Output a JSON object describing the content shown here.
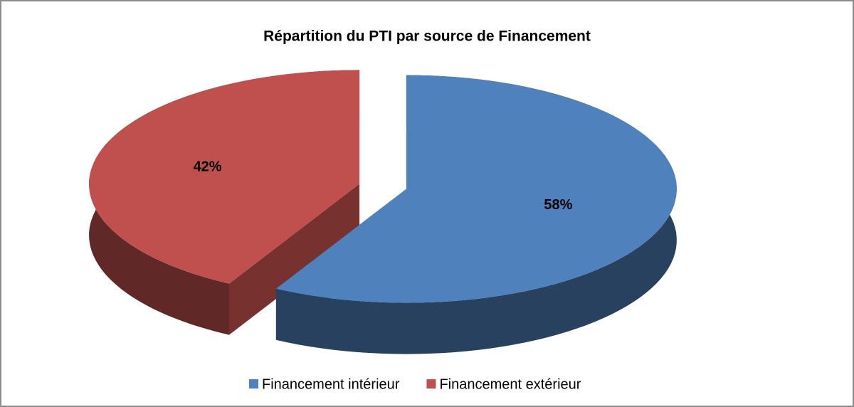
{
  "chart_data": {
    "type": "pie",
    "title": "Répartition du PTI par source de Financement",
    "categories": [
      "Financement intérieur",
      "Financement extérieur"
    ],
    "values": [
      58,
      42
    ],
    "value_labels": [
      "58%",
      "42%"
    ],
    "colors": [
      "#4f81bd",
      "#c0504d"
    ],
    "legend": "bottom"
  }
}
